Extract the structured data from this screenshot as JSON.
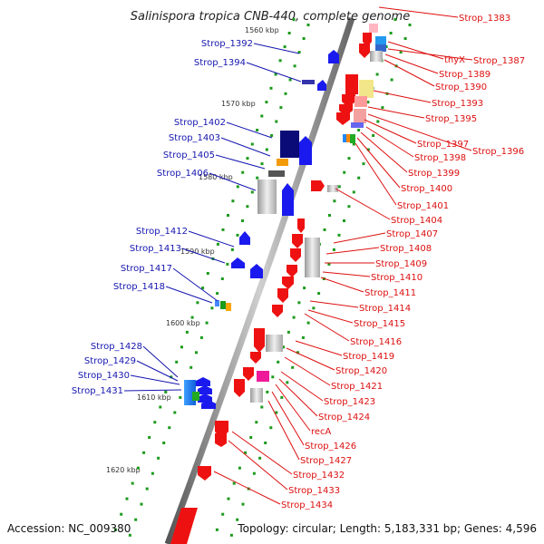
{
  "title": "Salinispora tropica CNB-440, complete genome",
  "footer": {
    "accession": "Accession: NC_009380",
    "topology": "Topology: circular; Length: 5,183,331 bp; Genes: 4,596"
  },
  "kbp_ticks": [
    "1560 kbp",
    "1570 kbp",
    "1580 kbp",
    "1590 kbp",
    "1600 kbp",
    "1610 kbp",
    "1620 kbp"
  ],
  "left_labels": [
    "Strop_1392",
    "Strop_1394",
    "Strop_1402",
    "Strop_1403",
    "Strop_1405",
    "Strop_1406",
    "Strop_1412",
    "Strop_1413",
    "Strop_1417",
    "Strop_1418",
    "Strop_1428",
    "Strop_1429",
    "Strop_1430",
    "Strop_1431"
  ],
  "right_labels": [
    "Strop_1383",
    "thyX",
    "Strop_1387",
    "Strop_1389",
    "Strop_1390",
    "Strop_1393",
    "Strop_1395",
    "Strop_1397",
    "Strop_1396",
    "Strop_1398",
    "Strop_1399",
    "Strop_1400",
    "Strop_1401",
    "Strop_1404",
    "Strop_1407",
    "Strop_1408",
    "Strop_1409",
    "Strop_1410",
    "Strop_1411",
    "Strop_1414",
    "Strop_1415",
    "Strop_1416",
    "Strop_1419",
    "Strop_1420",
    "Strop_1421",
    "Strop_1423",
    "Strop_1424",
    "recA",
    "Strop_1426",
    "Strop_1427",
    "Strop_1432",
    "Strop_1433",
    "Strop_1434"
  ],
  "colors": {
    "forward": "#1a1aee",
    "reverse": "#ee1111",
    "backbone": "#777777",
    "gc": "#1c9a1c",
    "left_text": "#1515b0",
    "right_text": "#dd0f0f"
  }
}
